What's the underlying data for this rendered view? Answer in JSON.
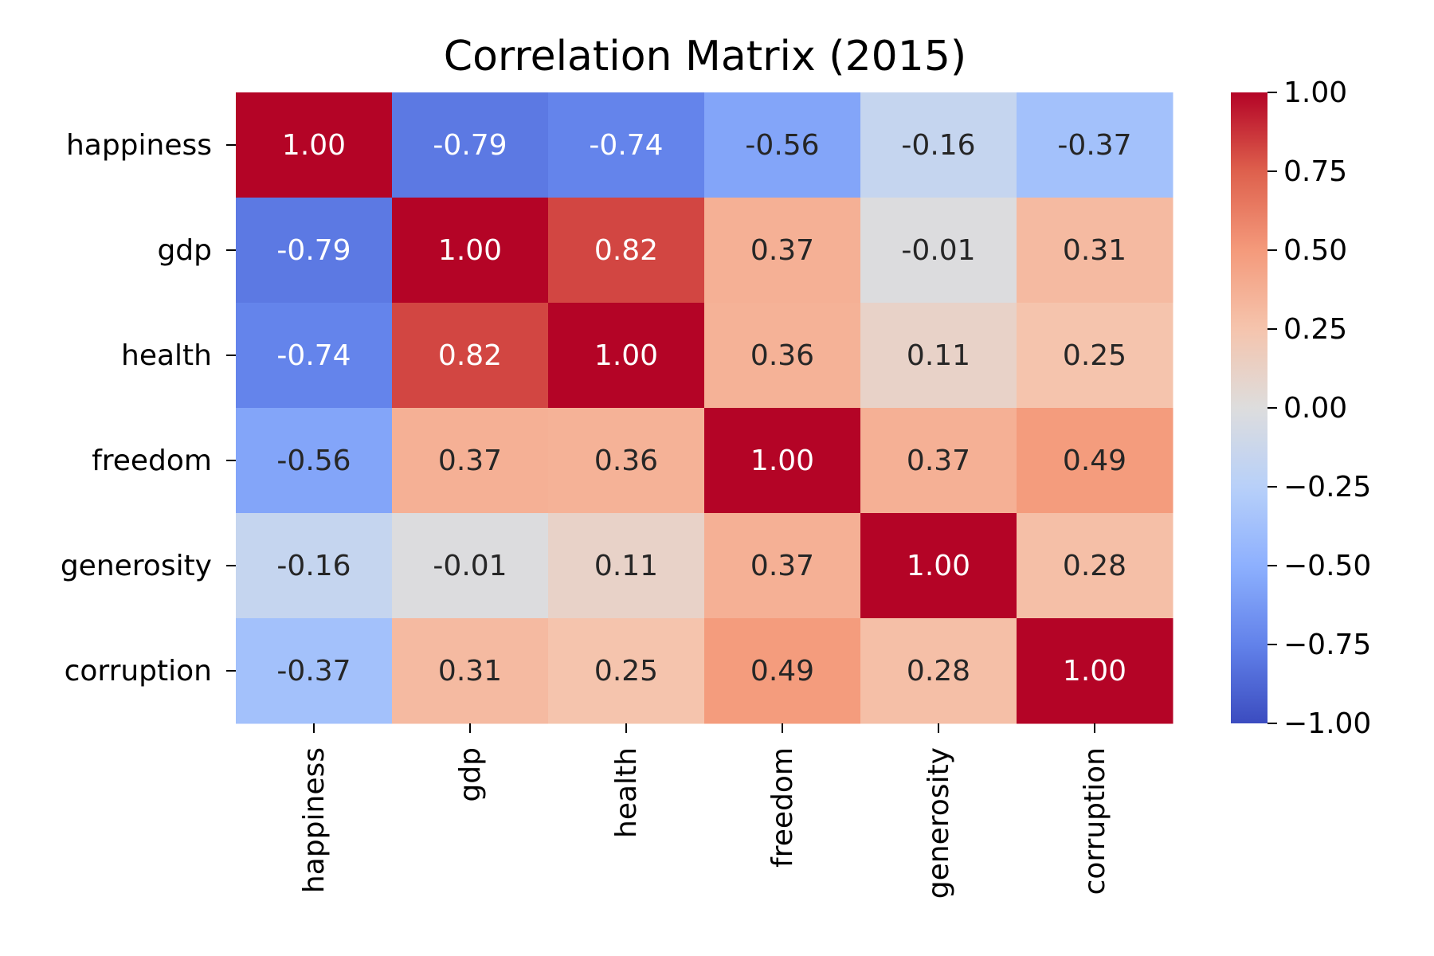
{
  "chart_data": {
    "type": "heatmap",
    "title": "Correlation Matrix (2015)",
    "xlabel": "",
    "ylabel": "",
    "row_labels": [
      "happiness",
      "gdp",
      "health",
      "freedom",
      "generosity",
      "corruption"
    ],
    "col_labels": [
      "happiness",
      "gdp",
      "health",
      "freedom",
      "generosity",
      "corruption"
    ],
    "values": [
      [
        1.0,
        -0.79,
        -0.74,
        -0.56,
        -0.16,
        -0.37
      ],
      [
        -0.79,
        1.0,
        0.82,
        0.37,
        -0.01,
        0.31
      ],
      [
        -0.74,
        0.82,
        1.0,
        0.36,
        0.11,
        0.25
      ],
      [
        -0.56,
        0.37,
        0.36,
        1.0,
        0.37,
        0.49
      ],
      [
        -0.16,
        -0.01,
        0.11,
        0.37,
        1.0,
        0.28
      ],
      [
        -0.37,
        0.31,
        0.25,
        0.49,
        0.28,
        1.0
      ]
    ],
    "cell_labels": [
      [
        "1.00",
        "-0.79",
        "-0.74",
        "-0.56",
        "-0.16",
        "-0.37"
      ],
      [
        "-0.79",
        "1.00",
        "0.82",
        "0.37",
        "-0.01",
        "0.31"
      ],
      [
        "-0.74",
        "0.82",
        "1.00",
        "0.36",
        "0.11",
        "0.25"
      ],
      [
        "-0.56",
        "0.37",
        "0.36",
        "1.00",
        "0.37",
        "0.49"
      ],
      [
        "-0.16",
        "-0.01",
        "0.11",
        "0.37",
        "1.00",
        "0.28"
      ],
      [
        "-0.37",
        "0.31",
        "0.25",
        "0.49",
        "0.28",
        "1.00"
      ]
    ],
    "colormap": "coolwarm",
    "colorbar": {
      "range": [
        -1.0,
        1.0
      ],
      "tick_values": [
        1.0,
        0.75,
        0.5,
        0.25,
        0.0,
        -0.25,
        -0.5,
        -0.75,
        -1.0
      ],
      "tick_labels": [
        "1.00",
        "0.75",
        "0.50",
        "0.25",
        "0.00",
        "−0.25",
        "−0.50",
        "−0.75",
        "−1.00"
      ]
    },
    "grid": false
  }
}
